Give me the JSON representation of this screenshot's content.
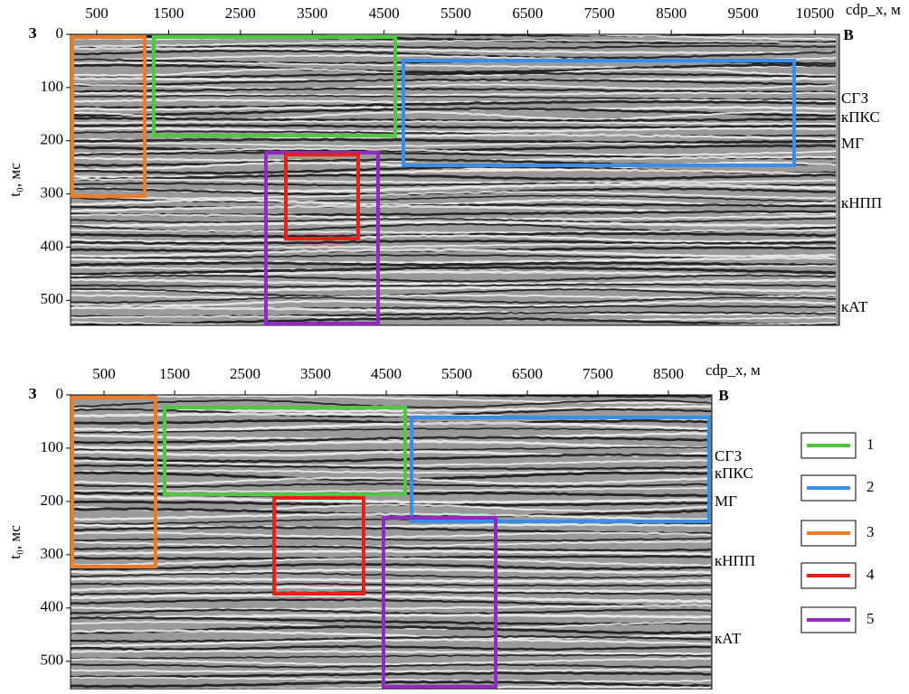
{
  "panels": [
    {
      "x_label": "cdp_x, м",
      "y_label": "t₀, мс",
      "left_mark": "З",
      "right_mark": "В",
      "xlim": [
        135,
        10840
      ],
      "xticks": [
        500,
        1500,
        2500,
        3500,
        4500,
        5500,
        6500,
        7500,
        8500,
        9500,
        10500
      ],
      "ylim": [
        0,
        547
      ],
      "yticks": [
        0,
        100,
        200,
        300,
        400,
        500
      ],
      "horizons": [
        "СГЗ",
        "кПКС",
        "МГ",
        "кНПП",
        "кАТ"
      ]
    },
    {
      "x_label": "cdp_x, м",
      "y_label": "t₀, мс",
      "left_mark": "З",
      "right_mark": "В",
      "xlim": [
        25,
        9115
      ],
      "xticks": [
        500,
        1500,
        2500,
        3500,
        4500,
        5500,
        6500,
        7500,
        8500
      ],
      "ylim": [
        0,
        553
      ],
      "yticks": [
        0,
        100,
        200,
        300,
        400,
        500
      ],
      "horizons": [
        "СГЗ",
        "кПКС",
        "МГ",
        "кНПП",
        "кАТ"
      ]
    }
  ],
  "legend": [
    {
      "label": "1",
      "color": "#4ec83c"
    },
    {
      "label": "2",
      "color": "#3a8ee6"
    },
    {
      "label": "3",
      "color": "#f07b24"
    },
    {
      "label": "4",
      "color": "#e8201c"
    },
    {
      "label": "5",
      "color": "#8e2cc0"
    }
  ]
}
